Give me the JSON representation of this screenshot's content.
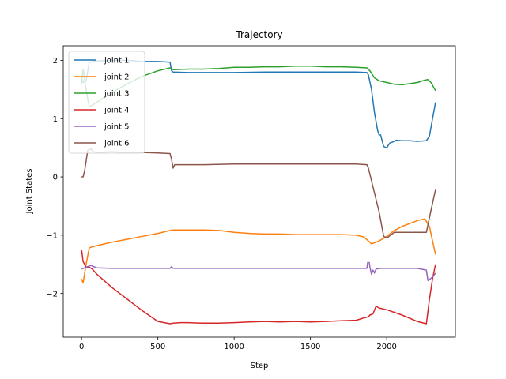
{
  "chart_data": {
    "type": "line",
    "title": "Trajectory",
    "xlabel": "Step",
    "ylabel": "Joint States",
    "xlim": [
      -120,
      2450
    ],
    "ylim": [
      -2.75,
      2.25
    ],
    "xticks": [
      0,
      500,
      1000,
      1500,
      2000
    ],
    "yticks": [
      -2,
      -1,
      0,
      1,
      2
    ],
    "xtick_labels": [
      "0",
      "500",
      "1000",
      "1500",
      "2000"
    ],
    "ytick_labels": [
      "−2",
      "−1",
      "0",
      "1",
      "2"
    ],
    "grid": false,
    "legend": "top-left",
    "series": [
      {
        "name": "joint 1",
        "color": "#1f77b4",
        "x": [
          0,
          10,
          30,
          50,
          70,
          100,
          200,
          300,
          400,
          500,
          580,
          590,
          600,
          700,
          800,
          1000,
          1200,
          1400,
          1600,
          1800,
          1870,
          1880,
          1900,
          1920,
          1940,
          1950,
          1960,
          1980,
          2000,
          2020,
          2040,
          2060,
          2100,
          2150,
          2200,
          2260,
          2280,
          2300,
          2320
        ],
        "y": [
          1.72,
          1.62,
          1.65,
          1.96,
          1.98,
          1.99,
          2.0,
          2.0,
          1.98,
          1.98,
          1.97,
          1.82,
          1.8,
          1.79,
          1.79,
          1.79,
          1.8,
          1.8,
          1.8,
          1.8,
          1.79,
          1.75,
          1.5,
          1.1,
          0.8,
          0.72,
          0.72,
          0.52,
          0.5,
          0.58,
          0.6,
          0.63,
          0.62,
          0.62,
          0.61,
          0.62,
          0.7,
          1.0,
          1.28
        ]
      },
      {
        "name": "joint 2",
        "color": "#ff7f0e",
        "x": [
          0,
          10,
          30,
          50,
          70,
          100,
          200,
          300,
          400,
          500,
          580,
          600,
          700,
          800,
          900,
          1000,
          1100,
          1200,
          1300,
          1400,
          1500,
          1600,
          1700,
          1800,
          1850,
          1880,
          1900,
          1950,
          2000,
          2050,
          2100,
          2200,
          2250,
          2280,
          2300,
          2320
        ],
        "y": [
          -1.75,
          -1.82,
          -1.5,
          -1.22,
          -1.2,
          -1.18,
          -1.12,
          -1.07,
          -1.02,
          -0.97,
          -0.92,
          -0.91,
          -0.91,
          -0.91,
          -0.92,
          -0.95,
          -0.97,
          -0.98,
          -0.98,
          -0.99,
          -0.99,
          -0.99,
          -0.99,
          -1.0,
          -1.03,
          -1.1,
          -1.15,
          -1.1,
          -1.02,
          -0.92,
          -0.85,
          -0.75,
          -0.72,
          -0.85,
          -1.1,
          -1.33
        ]
      },
      {
        "name": "joint 3",
        "color": "#2ca02c",
        "x": [
          0,
          10,
          30,
          50,
          100,
          200,
          300,
          400,
          500,
          580,
          600,
          700,
          800,
          900,
          1000,
          1100,
          1200,
          1300,
          1400,
          1500,
          1600,
          1700,
          1800,
          1870,
          1890,
          1920,
          1950,
          2000,
          2050,
          2100,
          2150,
          2200,
          2250,
          2270,
          2290,
          2320
        ],
        "y": [
          1.6,
          1.85,
          1.5,
          1.2,
          1.28,
          1.45,
          1.6,
          1.73,
          1.82,
          1.87,
          1.84,
          1.85,
          1.85,
          1.86,
          1.88,
          1.88,
          1.89,
          1.89,
          1.9,
          1.9,
          1.89,
          1.89,
          1.88,
          1.87,
          1.82,
          1.7,
          1.65,
          1.62,
          1.59,
          1.58,
          1.6,
          1.62,
          1.66,
          1.67,
          1.62,
          1.48
        ]
      },
      {
        "name": "joint 4",
        "color": "#d62728",
        "x": [
          0,
          10,
          30,
          50,
          70,
          100,
          200,
          300,
          400,
          500,
          580,
          600,
          650,
          700,
          800,
          900,
          1000,
          1100,
          1200,
          1300,
          1400,
          1500,
          1600,
          1700,
          1800,
          1850,
          1880,
          1890,
          1910,
          1930,
          1950,
          2000,
          2100,
          2200,
          2260,
          2280,
          2300,
          2320
        ],
        "y": [
          -1.25,
          -1.45,
          -1.55,
          -1.55,
          -1.58,
          -1.67,
          -1.9,
          -2.1,
          -2.3,
          -2.48,
          -2.52,
          -2.51,
          -2.5,
          -2.5,
          -2.51,
          -2.51,
          -2.5,
          -2.49,
          -2.48,
          -2.49,
          -2.48,
          -2.49,
          -2.48,
          -2.47,
          -2.46,
          -2.42,
          -2.4,
          -2.37,
          -2.35,
          -2.22,
          -2.25,
          -2.28,
          -2.37,
          -2.48,
          -2.52,
          -2.1,
          -1.75,
          -1.5
        ]
      },
      {
        "name": "joint 5",
        "color": "#9467bd",
        "x": [
          0,
          30,
          60,
          100,
          200,
          300,
          400,
          500,
          580,
          590,
          600,
          700,
          800,
          1000,
          1200,
          1400,
          1600,
          1800,
          1870,
          1875,
          1885,
          1890,
          1900,
          1910,
          1920,
          1930,
          1960,
          2000,
          2100,
          2200,
          2260,
          2270,
          2300,
          2320
        ],
        "y": [
          -1.58,
          -1.55,
          -1.52,
          -1.56,
          -1.57,
          -1.57,
          -1.57,
          -1.57,
          -1.57,
          -1.54,
          -1.57,
          -1.57,
          -1.57,
          -1.57,
          -1.57,
          -1.57,
          -1.57,
          -1.57,
          -1.57,
          -1.47,
          -1.47,
          -1.55,
          -1.67,
          -1.6,
          -1.65,
          -1.58,
          -1.57,
          -1.57,
          -1.57,
          -1.57,
          -1.6,
          -1.78,
          -1.72,
          -1.65
        ]
      },
      {
        "name": "joint 6",
        "color": "#8c564b",
        "x": [
          0,
          10,
          20,
          40,
          60,
          80,
          100,
          200,
          300,
          400,
          500,
          580,
          590,
          600,
          610,
          700,
          800,
          1000,
          1200,
          1400,
          1600,
          1800,
          1870,
          1880,
          1950,
          1980,
          2000,
          2050,
          2100,
          2200,
          2260,
          2280,
          2300,
          2320
        ],
        "y": [
          0.0,
          0.0,
          0.1,
          0.45,
          0.48,
          0.43,
          0.42,
          0.43,
          0.42,
          0.42,
          0.41,
          0.4,
          0.3,
          0.15,
          0.21,
          0.21,
          0.21,
          0.22,
          0.22,
          0.22,
          0.22,
          0.22,
          0.21,
          0.15,
          -0.6,
          -1.02,
          -1.05,
          -0.95,
          -0.95,
          -0.95,
          -0.95,
          -0.7,
          -0.45,
          -0.22
        ]
      }
    ]
  }
}
